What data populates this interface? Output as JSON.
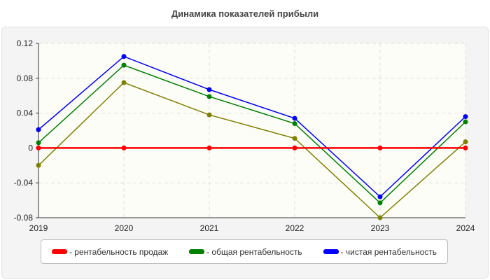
{
  "chart_data": {
    "type": "line",
    "title": "Динамика показателей прибыли",
    "x": [
      "2019",
      "2020",
      "2021",
      "2022",
      "2023",
      "2024"
    ],
    "ylim": [
      -0.08,
      0.12
    ],
    "yticks": [
      "0.12",
      "0.08",
      "0.04",
      "0",
      "-0.04",
      "-0.08"
    ],
    "ytick_values": [
      0.12,
      0.08,
      0.04,
      0,
      -0.04,
      -0.08
    ],
    "grid": true,
    "legend_placement": "bottom",
    "series": [
      {
        "name": "- рентабельность продаж",
        "color": "#ff0000",
        "values": [
          0,
          0,
          0,
          0,
          0,
          0
        ]
      },
      {
        "name": "- общая рентабельность",
        "color": "#008000",
        "values": [
          0.006,
          0.095,
          0.059,
          0.028,
          -0.063,
          0.03
        ]
      },
      {
        "name": "- чистая рентабельность",
        "color": "#0000ff",
        "values": [
          0.021,
          0.105,
          0.067,
          0.034,
          -0.056,
          0.036
        ]
      },
      {
        "color": "#808000",
        "values": [
          -0.02,
          0.075,
          0.038,
          0.011,
          -0.08,
          0.007
        ]
      }
    ]
  }
}
